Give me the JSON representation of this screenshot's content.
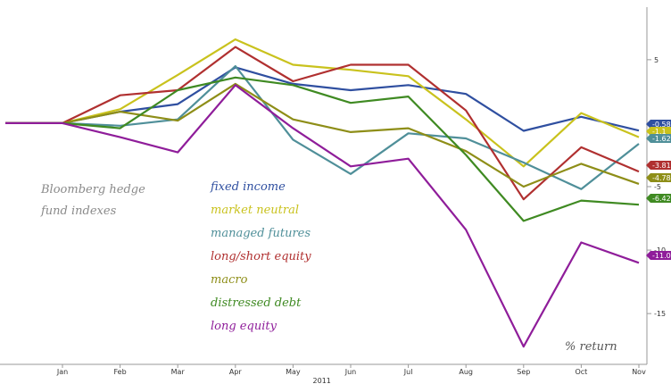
{
  "chart_data": {
    "type": "line",
    "categories": [
      "Jan",
      "Feb",
      "Mar",
      "Apr",
      "May",
      "Jun",
      "Jul",
      "Aug",
      "Sep",
      "Oct",
      "Nov"
    ],
    "x_year_label": "2011",
    "y_ticks": [
      "5",
      "0",
      "-5",
      "-10",
      "-15"
    ],
    "ylim": [
      -19,
      9
    ],
    "grid": false,
    "annotation_title": "Bloomberg hedge fund indexes",
    "annotation_unit": "% return",
    "series": [
      {
        "name": "fixed income",
        "color": "#2f4fa0",
        "end_label": "-0.58",
        "values": [
          0,
          0.9,
          1.5,
          4.4,
          3.1,
          2.6,
          3.0,
          2.3,
          -0.6,
          0.5,
          -0.58
        ]
      },
      {
        "name": "market neutral",
        "color": "#c9c21d",
        "end_label": "-1.1",
        "values": [
          0,
          1.1,
          3.8,
          6.6,
          4.6,
          4.2,
          3.7,
          0.3,
          -3.4,
          0.8,
          -1.1
        ]
      },
      {
        "name": "managed futures",
        "color": "#4f8f99",
        "end_label": "-1.62",
        "values": [
          0,
          -0.2,
          0.3,
          4.5,
          -1.3,
          -4.0,
          -0.8,
          -1.2,
          -3.1,
          -5.2,
          -1.62
        ]
      },
      {
        "name": "long/short equity",
        "color": "#b03030",
        "end_label": "-3.81",
        "values": [
          0,
          2.2,
          2.6,
          6.0,
          3.3,
          4.6,
          4.6,
          1.0,
          -6.0,
          -1.9,
          -3.81
        ]
      },
      {
        "name": "macro",
        "color": "#8e8e18",
        "end_label": "-4.78",
        "values": [
          0,
          0.9,
          0.2,
          3.1,
          0.3,
          -0.7,
          -0.4,
          -2.2,
          -5.0,
          -3.2,
          -4.78
        ]
      },
      {
        "name": "distressed debt",
        "color": "#3f8a22",
        "end_label": "-6.42",
        "values": [
          0,
          -0.4,
          2.6,
          3.6,
          3.0,
          1.6,
          2.1,
          -2.5,
          -7.7,
          -6.1,
          -6.42
        ]
      },
      {
        "name": "long equity",
        "color": "#8f1d9a",
        "end_label": "-11.0",
        "values": [
          0,
          -1.1,
          -2.3,
          3.0,
          -0.4,
          -3.4,
          -2.8,
          -8.4,
          -17.6,
          -9.4,
          -11.0
        ]
      }
    ]
  }
}
